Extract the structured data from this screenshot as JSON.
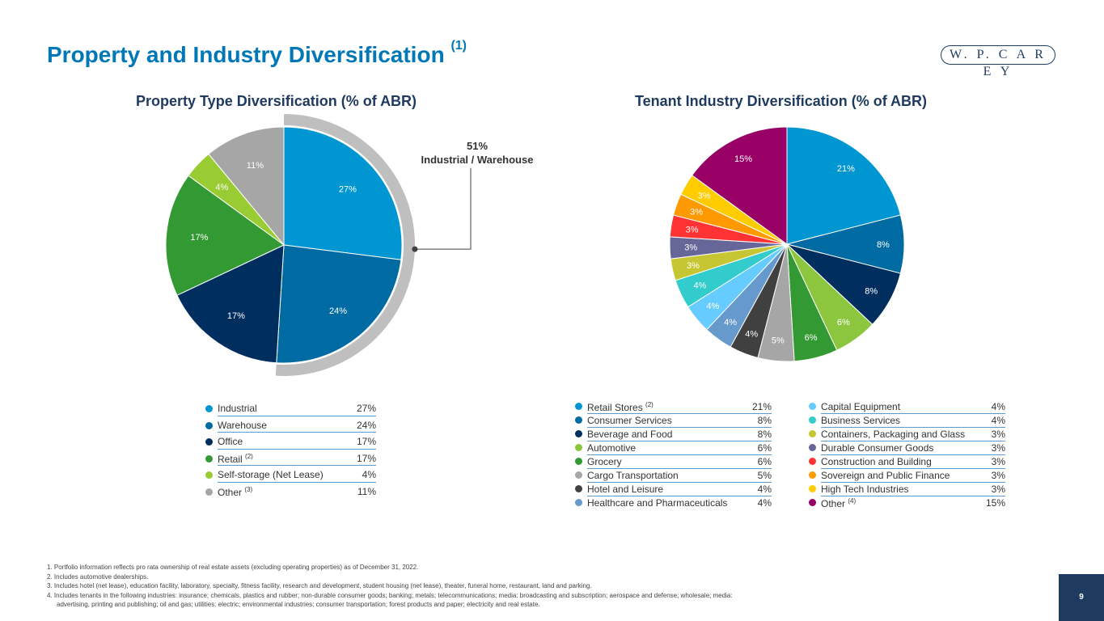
{
  "page": {
    "title": "Property and Industry Diversification",
    "title_sup": "(1)",
    "logo": "W. P. C A R E Y",
    "page_number": "9"
  },
  "property_chart": {
    "subtitle": "Property Type Diversification (% of ABR)",
    "callout_pct": "51%",
    "callout_label": "Industrial / Warehouse",
    "legend": [
      {
        "label": "Industrial",
        "sup": "",
        "value": "27%"
      },
      {
        "label": "Warehouse",
        "sup": "",
        "value": "24%"
      },
      {
        "label": "Office",
        "sup": "",
        "value": "17%"
      },
      {
        "label": "Retail",
        "sup": "(2)",
        "value": "17%"
      },
      {
        "label": "Self-storage (Net Lease)",
        "sup": "",
        "value": "4%"
      },
      {
        "label": "Other",
        "sup": "(3)",
        "value": "11%"
      }
    ]
  },
  "industry_chart": {
    "subtitle": "Tenant Industry Diversification (% of ABR)",
    "legend": [
      {
        "label": "Retail Stores",
        "sup": "(2)",
        "value": "21%"
      },
      {
        "label": "Consumer Services",
        "sup": "",
        "value": "8%"
      },
      {
        "label": "Beverage and Food",
        "sup": "",
        "value": "8%"
      },
      {
        "label": "Automotive",
        "sup": "",
        "value": "6%"
      },
      {
        "label": "Grocery",
        "sup": "",
        "value": "6%"
      },
      {
        "label": "Cargo Transportation",
        "sup": "",
        "value": "5%"
      },
      {
        "label": "Hotel and Leisure",
        "sup": "",
        "value": "4%"
      },
      {
        "label": "Healthcare and Pharmaceuticals",
        "sup": "",
        "value": "4%"
      },
      {
        "label": "Capital Equipment",
        "sup": "",
        "value": "4%"
      },
      {
        "label": "Business Services",
        "sup": "",
        "value": "4%"
      },
      {
        "label": "Containers, Packaging and Glass",
        "sup": "",
        "value": "3%"
      },
      {
        "label": "Durable Consumer Goods",
        "sup": "",
        "value": "3%"
      },
      {
        "label": "Construction and Building",
        "sup": "",
        "value": "3%"
      },
      {
        "label": "Sovereign and Public Finance",
        "sup": "",
        "value": "3%"
      },
      {
        "label": "High Tech Industries",
        "sup": "",
        "value": "3%"
      },
      {
        "label": "Other",
        "sup": "(4)",
        "value": "15%"
      }
    ]
  },
  "footnotes": [
    "1.  Portfolio information reflects pro rata ownership of real estate assets (excluding operating properties) as of December 31, 2022.",
    "2.  Includes automotive dealerships.",
    "3.  Includes hotel (net lease), education facility, laboratory, specialty, fitness facility, research and development, student housing (net lease), theater, funeral home, restaurant, land and parking.",
    "4.  Includes tenants in the following industries: insurance; chemicals, plastics and rubber; non-durable consumer goods; banking; metals; telecommunications; media: broadcasting and subscription; aerospace and defense; wholesale; media:",
    "advertising, printing and publishing; oil and gas; utilities: electric; environmental industries; consumer transportation; forest products and paper; electricity and real estate."
  ],
  "chart_data": [
    {
      "type": "pie",
      "title": "Property Type Diversification (% of ABR)",
      "categories": [
        "Industrial",
        "Warehouse",
        "Office",
        "Retail",
        "Self-storage (Net Lease)",
        "Other"
      ],
      "values": [
        27,
        24,
        17,
        17,
        4,
        11
      ],
      "labels": [
        "27%",
        "24%",
        "17%",
        "17%",
        "4%",
        "11%"
      ],
      "colors": [
        "#0096d1",
        "#006aa3",
        "#002f5f",
        "#339933",
        "#99cc33",
        "#a6a6a6"
      ],
      "highlight": {
        "label": "Industrial / Warehouse",
        "value": 51,
        "color": "#bfbfbf"
      },
      "legend": "below"
    },
    {
      "type": "pie",
      "title": "Tenant Industry Diversification (% of ABR)",
      "categories": [
        "Retail Stores",
        "Consumer Services",
        "Beverage and Food",
        "Automotive",
        "Grocery",
        "Cargo Transportation",
        "Hotel and Leisure",
        "Healthcare and Pharmaceuticals",
        "Capital Equipment",
        "Business Services",
        "Containers, Packaging and Glass",
        "Durable Consumer Goods",
        "Construction and Building",
        "Sovereign and Public Finance",
        "High Tech Industries",
        "Other"
      ],
      "values": [
        21,
        8,
        8,
        6,
        6,
        5,
        4,
        4,
        4,
        4,
        3,
        3,
        3,
        3,
        3,
        15
      ],
      "labels": [
        "21%",
        "8%",
        "8%",
        "6%",
        "6%",
        "5%",
        "4%",
        "4%",
        "4%",
        "4%",
        "3%",
        "3%",
        "3%",
        "3%",
        "3%",
        "15%"
      ],
      "colors": [
        "#0096d1",
        "#006aa3",
        "#002f5f",
        "#8cc63f",
        "#339933",
        "#a6a6a6",
        "#404040",
        "#6699cc",
        "#66ccff",
        "#33cccc",
        "#c6c633",
        "#666699",
        "#ff3333",
        "#ff9900",
        "#ffcc00",
        "#990066"
      ],
      "legend": "below"
    }
  ]
}
